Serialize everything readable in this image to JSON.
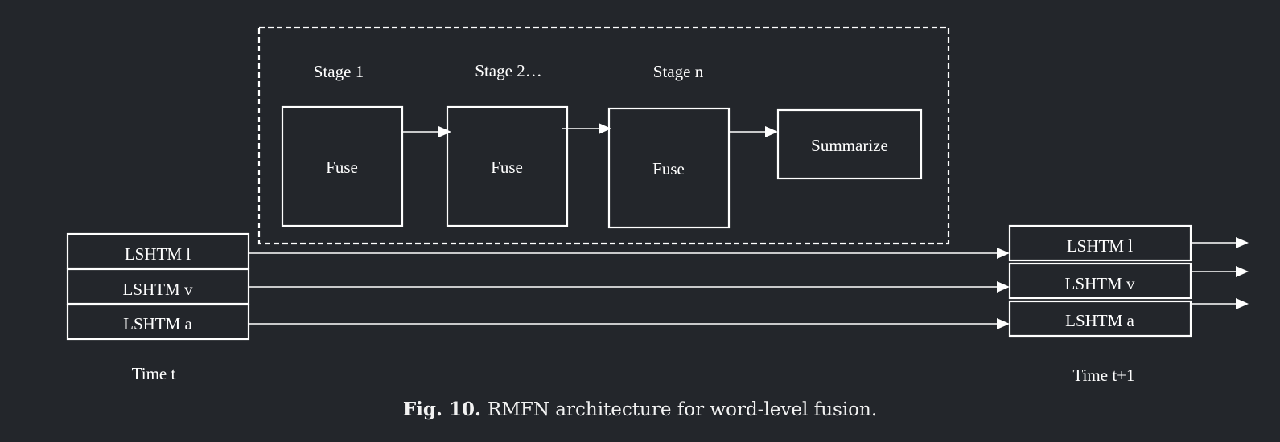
{
  "diagram": {
    "stages": [
      {
        "label": "Stage 1",
        "box": "Fuse"
      },
      {
        "label": "Stage 2…",
        "box": "Fuse"
      },
      {
        "label": "Stage n",
        "box": "Fuse"
      }
    ],
    "summarize": "Summarize",
    "left_stack": [
      "LSHTM l",
      "LSHTM v",
      "LSHTM a"
    ],
    "right_stack": [
      "LSHTM l",
      "LSHTM v",
      "LSHTM a"
    ],
    "time_left": "Time t",
    "time_right": "Time t+1"
  },
  "caption": {
    "fig": "Fig. 10.",
    "text": "RMFN architecture for word-level fusion."
  }
}
